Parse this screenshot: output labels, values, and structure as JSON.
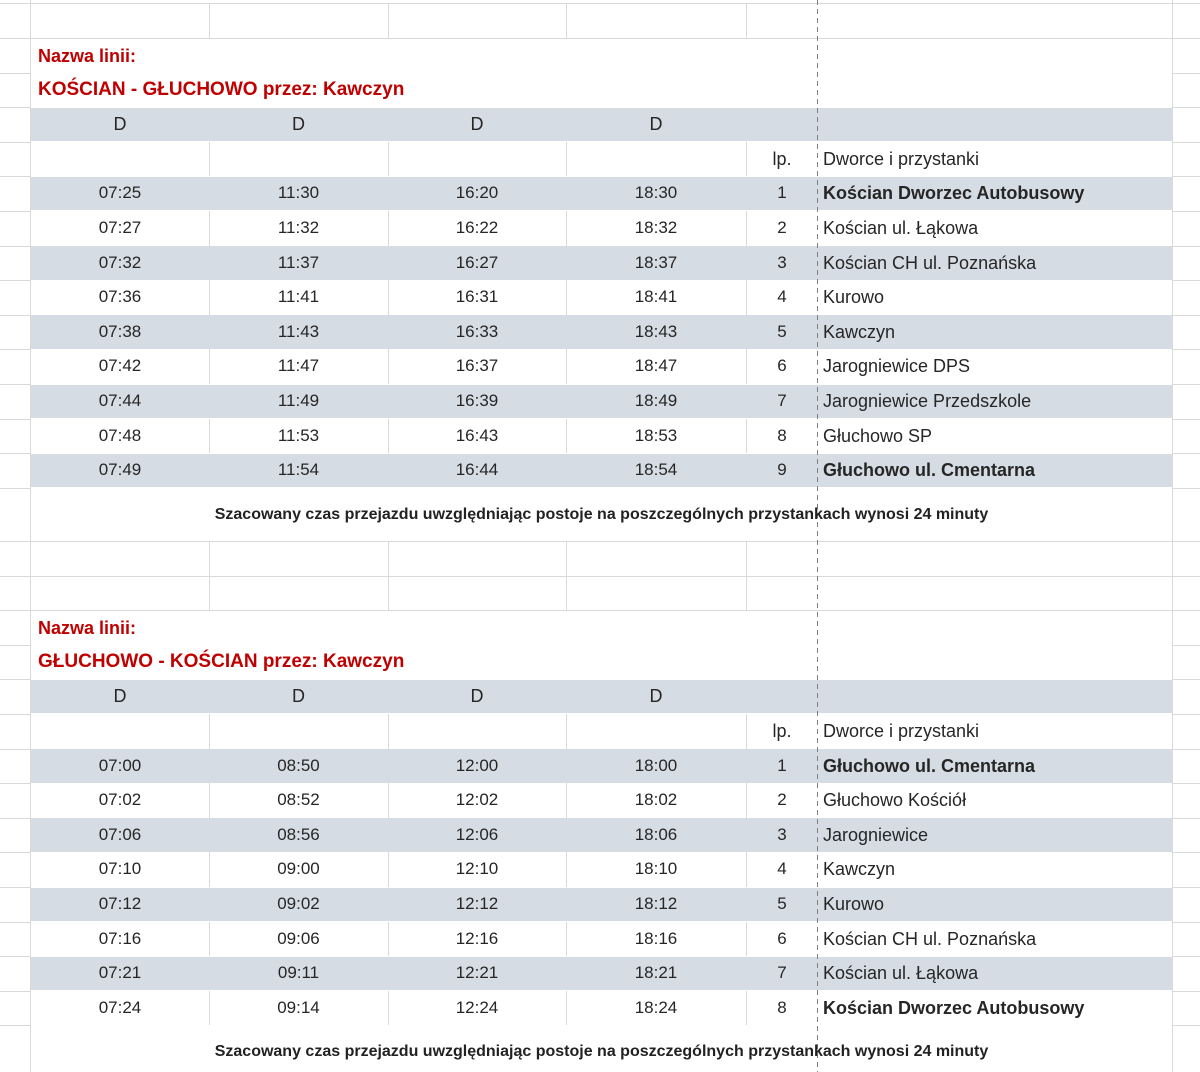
{
  "sheet": {
    "kind": "bus timetable spreadsheet"
  },
  "colors": {
    "band_fill": "#d6dce4",
    "grid_line": "#d9d9d9",
    "title_red": "#c00000",
    "text_dark": "#262626",
    "page_break_gray": "#7f7f7f"
  },
  "tables": [
    {
      "name_label": "Nazwa linii:",
      "line_title": "KOŚCIAN - GŁUCHOWO przez: Kawczyn",
      "day_codes": [
        "D",
        "D",
        "D",
        "D"
      ],
      "lp_header": "lp.",
      "stops_header": "Dworce i przystanki",
      "rows": [
        {
          "times": [
            "07:25",
            "11:30",
            "16:20",
            "18:30"
          ],
          "num": "1",
          "stop": "Kościan Dworzec Autobusowy",
          "bold": true
        },
        {
          "times": [
            "07:27",
            "11:32",
            "16:22",
            "18:32"
          ],
          "num": "2",
          "stop": "Kościan ul. Łąkowa",
          "bold": false
        },
        {
          "times": [
            "07:32",
            "11:37",
            "16:27",
            "18:37"
          ],
          "num": "3",
          "stop": "Kościan CH ul. Poznańska",
          "bold": false
        },
        {
          "times": [
            "07:36",
            "11:41",
            "16:31",
            "18:41"
          ],
          "num": "4",
          "stop": "Kurowo",
          "bold": false
        },
        {
          "times": [
            "07:38",
            "11:43",
            "16:33",
            "18:43"
          ],
          "num": "5",
          "stop": "Kawczyn",
          "bold": false
        },
        {
          "times": [
            "07:42",
            "11:47",
            "16:37",
            "18:47"
          ],
          "num": "6",
          "stop": "Jarogniewice DPS",
          "bold": false
        },
        {
          "times": [
            "07:44",
            "11:49",
            "16:39",
            "18:49"
          ],
          "num": "7",
          "stop": "Jarogniewice Przedszkole",
          "bold": false
        },
        {
          "times": [
            "07:48",
            "11:53",
            "16:43",
            "18:53"
          ],
          "num": "8",
          "stop": "Głuchowo SP",
          "bold": false
        },
        {
          "times": [
            "07:49",
            "11:54",
            "16:44",
            "18:54"
          ],
          "num": "9",
          "stop": "Głuchowo ul. Cmentarna",
          "bold": true
        }
      ],
      "footer": "Szacowany czas przejazdu uwzględniając postoje na poszczególnych przystankach wynosi 24 minuty"
    },
    {
      "name_label": "Nazwa linii:",
      "line_title": "GŁUCHOWO - KOŚCIAN przez: Kawczyn",
      "day_codes": [
        "D",
        "D",
        "D",
        "D"
      ],
      "lp_header": "lp.",
      "stops_header": "Dworce i przystanki",
      "rows": [
        {
          "times": [
            "07:00",
            "08:50",
            "12:00",
            "18:00"
          ],
          "num": "1",
          "stop": "Głuchowo ul. Cmentarna",
          "bold": true
        },
        {
          "times": [
            "07:02",
            "08:52",
            "12:02",
            "18:02"
          ],
          "num": "2",
          "stop": "Głuchowo Kościół",
          "bold": false
        },
        {
          "times": [
            "07:06",
            "08:56",
            "12:06",
            "18:06"
          ],
          "num": "3",
          "stop": "Jarogniewice",
          "bold": false
        },
        {
          "times": [
            "07:10",
            "09:00",
            "12:10",
            "18:10"
          ],
          "num": "4",
          "stop": "Kawczyn",
          "bold": false
        },
        {
          "times": [
            "07:12",
            "09:02",
            "12:12",
            "18:12"
          ],
          "num": "5",
          "stop": "Kurowo",
          "bold": false
        },
        {
          "times": [
            "07:16",
            "09:06",
            "12:16",
            "18:16"
          ],
          "num": "6",
          "stop": "Kościan CH ul. Poznańska",
          "bold": false
        },
        {
          "times": [
            "07:21",
            "09:11",
            "12:21",
            "18:21"
          ],
          "num": "7",
          "stop": "Kościan ul. Łąkowa",
          "bold": false
        },
        {
          "times": [
            "07:24",
            "09:14",
            "12:24",
            "18:24"
          ],
          "num": "8",
          "stop": "Kościan Dworzec Autobusowy",
          "bold": true
        }
      ],
      "footer": "Szacowany czas przejazdu uwzględniając postoje na poszczególnych przystankach wynosi 24 minuty"
    }
  ]
}
